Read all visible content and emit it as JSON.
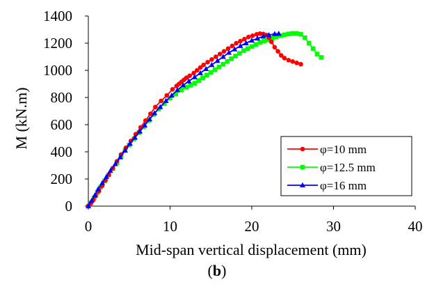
{
  "caption": {
    "open": "(",
    "label": "b",
    "close": ")"
  },
  "chart_data": {
    "type": "line",
    "xlabel": "Mid-span vertical displacement (mm)",
    "ylabel": "M (kN.m)",
    "xlim": [
      0,
      40
    ],
    "ylim": [
      0,
      1400
    ],
    "x_ticks": [
      "0",
      "10",
      "20",
      "30",
      "40"
    ],
    "y_ticks": [
      "0",
      "200",
      "400",
      "600",
      "800",
      "1000",
      "1200",
      "1400"
    ],
    "grid": false,
    "legend_position": "bottom-right",
    "series": [
      {
        "name": "φ=10 mm",
        "color": "#ff0000",
        "marker": "circle",
        "x": [
          0,
          0.3,
          0.6,
          0.9,
          1.3,
          1.7,
          2.1,
          2.5,
          3.0,
          3.5,
          4.0,
          4.6,
          5.2,
          5.8,
          6.4,
          7.0,
          7.6,
          8.2,
          8.9,
          9.6,
          10.3,
          10.8,
          11.1,
          11.4,
          11.7,
          12.0,
          12.4,
          12.9,
          13.3,
          13.7,
          14.1,
          14.6,
          15.1,
          15.6,
          16.1,
          16.6,
          17.1,
          17.6,
          18.1,
          18.6,
          19.1,
          19.6,
          20.1,
          20.6,
          21.0,
          21.4,
          21.8,
          22.1,
          22.4,
          22.8,
          23.2,
          23.6,
          24.0,
          24.5,
          25.0,
          25.5,
          26.0
        ],
        "y": [
          0,
          20,
          45,
          75,
          110,
          150,
          190,
          230,
          280,
          330,
          380,
          430,
          480,
          530,
          580,
          630,
          680,
          730,
          775,
          815,
          860,
          885,
          900,
          915,
          930,
          945,
          960,
          980,
          1000,
          1020,
          1040,
          1060,
          1080,
          1100,
          1120,
          1140,
          1160,
          1180,
          1200,
          1215,
          1230,
          1245,
          1255,
          1265,
          1270,
          1268,
          1260,
          1240,
          1210,
          1170,
          1140,
          1110,
          1090,
          1075,
          1065,
          1055,
          1045
        ]
      },
      {
        "name": "φ=12.5 mm",
        "color": "#00ff00",
        "marker": "square",
        "x": [
          0,
          0.3,
          0.7,
          1.1,
          1.5,
          2.0,
          2.5,
          3.0,
          3.5,
          4.0,
          4.5,
          5.0,
          5.6,
          6.2,
          6.8,
          7.4,
          8.0,
          8.6,
          9.3,
          10.0,
          10.7,
          11.4,
          12.0,
          12.5,
          13.0,
          13.5,
          14.0,
          14.5,
          15.0,
          15.5,
          16.0,
          16.5,
          17.0,
          17.5,
          18.0,
          18.5,
          19.0,
          19.5,
          20.0,
          20.5,
          21.0,
          21.5,
          22.0,
          22.5,
          23.0,
          23.5,
          24.0,
          24.5,
          25.0,
          25.5,
          26.0,
          26.5,
          27.0,
          27.5,
          28.0,
          28.5
        ],
        "y": [
          0,
          25,
          60,
          100,
          140,
          185,
          230,
          275,
          320,
          365,
          410,
          450,
          495,
          540,
          585,
          630,
          675,
          715,
          755,
          795,
          825,
          855,
          875,
          890,
          905,
          925,
          945,
          965,
          985,
          1005,
          1025,
          1045,
          1065,
          1085,
          1105,
          1125,
          1145,
          1160,
          1175,
          1190,
          1205,
          1215,
          1225,
          1235,
          1245,
          1255,
          1262,
          1268,
          1272,
          1272,
          1265,
          1240,
          1200,
          1160,
          1120,
          1095
        ]
      },
      {
        "name": "φ=16 mm",
        "color": "#0000ff",
        "marker": "triangle",
        "x": [
          0,
          0.4,
          0.8,
          1.2,
          1.7,
          2.2,
          2.7,
          3.3,
          3.9,
          4.5,
          5.1,
          5.7,
          6.3,
          6.9,
          7.5,
          8.1,
          8.8,
          9.5,
          10.2,
          10.9,
          11.6,
          12.3,
          13.0,
          13.7,
          14.4,
          15.1,
          15.8,
          16.5,
          17.2,
          17.9,
          18.6,
          19.3,
          20.0,
          20.7,
          21.4,
          22.1,
          22.8,
          23.3
        ],
        "y": [
          0,
          40,
          80,
          125,
          170,
          215,
          260,
          310,
          360,
          410,
          460,
          505,
          550,
          595,
          640,
          685,
          730,
          775,
          815,
          855,
          890,
          920,
          950,
          980,
          1010,
          1040,
          1070,
          1100,
          1130,
          1155,
          1180,
          1200,
          1220,
          1235,
          1250,
          1260,
          1268,
          1270
        ]
      }
    ]
  }
}
